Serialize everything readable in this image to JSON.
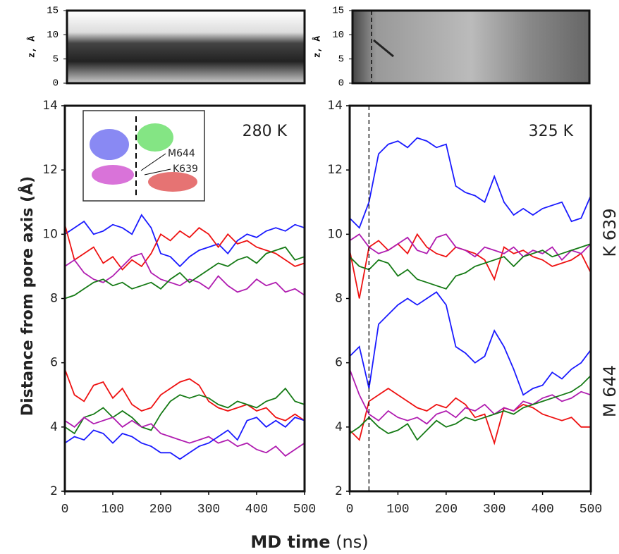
{
  "figure": {
    "ylabel": "Distance from pore axis (Å)",
    "xlabel": "MD time",
    "xlabel_unit": "(ns)",
    "side_labels": [
      "K 639",
      "M 644"
    ],
    "inset_labels": [
      "M644",
      "K639"
    ]
  },
  "chart_data": [
    {
      "type": "heatmap",
      "ylabel": "z, Å",
      "xlim": [
        0,
        500
      ],
      "ylim": [
        0,
        15
      ],
      "yticks": [
        0,
        5,
        10,
        15
      ]
    },
    {
      "type": "heatmap",
      "ylabel": "z, Å",
      "xlim": [
        0,
        500
      ],
      "ylim": [
        0,
        15
      ],
      "yticks": [
        0,
        5,
        10,
        15
      ],
      "vline": 40
    },
    {
      "type": "line",
      "annotation": "280 K",
      "x": [
        0,
        20,
        40,
        60,
        80,
        100,
        120,
        140,
        160,
        180,
        200,
        220,
        240,
        260,
        280,
        300,
        320,
        340,
        360,
        380,
        400,
        420,
        440,
        460,
        480,
        500
      ],
      "xlim": [
        0,
        500
      ],
      "xticks": [
        0,
        100,
        200,
        300,
        400,
        500
      ],
      "ylim": [
        2,
        14
      ],
      "yticks": [
        2,
        4,
        6,
        8,
        10,
        12,
        14
      ],
      "series": [
        {
          "color": "#1a1aff",
          "values": [
            10.0,
            10.2,
            10.4,
            10.0,
            10.1,
            10.3,
            10.2,
            10.0,
            10.6,
            10.2,
            9.4,
            9.3,
            9.0,
            9.3,
            9.5,
            9.6,
            9.7,
            9.4,
            9.8,
            10.0,
            9.9,
            10.1,
            10.2,
            10.1,
            10.3,
            10.2
          ]
        },
        {
          "color": "#ee1111",
          "values": [
            10.3,
            9.2,
            9.4,
            9.6,
            9.1,
            9.3,
            8.9,
            9.2,
            9.0,
            9.4,
            10.0,
            9.8,
            10.1,
            9.9,
            10.2,
            10.0,
            9.6,
            10.0,
            9.7,
            9.8,
            9.6,
            9.5,
            9.4,
            9.2,
            9.0,
            9.1
          ]
        },
        {
          "color": "#b01cb0",
          "values": [
            9.0,
            9.2,
            8.8,
            8.6,
            8.5,
            8.7,
            9.0,
            9.3,
            9.4,
            8.8,
            8.6,
            8.5,
            8.4,
            8.6,
            8.5,
            8.3,
            8.7,
            8.4,
            8.2,
            8.3,
            8.6,
            8.4,
            8.5,
            8.2,
            8.3,
            8.1
          ]
        },
        {
          "color": "#157a15",
          "values": [
            8.0,
            8.1,
            8.3,
            8.5,
            8.6,
            8.4,
            8.5,
            8.3,
            8.4,
            8.5,
            8.3,
            8.6,
            8.8,
            8.5,
            8.7,
            8.9,
            9.1,
            9.0,
            9.2,
            9.3,
            9.1,
            9.4,
            9.5,
            9.6,
            9.2,
            9.3
          ]
        },
        {
          "color": "#ee1111",
          "values": [
            5.8,
            5.0,
            4.8,
            5.3,
            5.4,
            4.9,
            5.2,
            4.7,
            4.5,
            4.6,
            5.0,
            5.2,
            5.4,
            5.5,
            5.3,
            4.8,
            4.6,
            4.5,
            4.6,
            4.7,
            4.5,
            4.6,
            4.3,
            4.2,
            4.4,
            4.2
          ]
        },
        {
          "color": "#157a15",
          "values": [
            4.0,
            3.8,
            4.3,
            4.4,
            4.6,
            4.3,
            4.5,
            4.3,
            4.0,
            3.9,
            4.4,
            4.8,
            5.0,
            4.9,
            5.0,
            4.9,
            4.7,
            4.6,
            4.8,
            4.7,
            4.6,
            4.8,
            4.9,
            5.2,
            4.8,
            4.7
          ]
        },
        {
          "color": "#b01cb0",
          "values": [
            4.2,
            4.0,
            4.3,
            4.1,
            4.2,
            4.3,
            4.0,
            4.2,
            4.0,
            4.1,
            3.8,
            3.7,
            3.6,
            3.5,
            3.6,
            3.7,
            3.5,
            3.6,
            3.4,
            3.5,
            3.3,
            3.2,
            3.4,
            3.1,
            3.3,
            3.5
          ]
        },
        {
          "color": "#1a1aff",
          "values": [
            3.5,
            3.7,
            3.6,
            3.9,
            3.8,
            3.5,
            3.8,
            3.7,
            3.5,
            3.4,
            3.2,
            3.2,
            3.0,
            3.2,
            3.4,
            3.5,
            3.7,
            3.9,
            3.6,
            4.2,
            4.3,
            4.0,
            4.2,
            4.0,
            4.3,
            4.2
          ]
        }
      ]
    },
    {
      "type": "line",
      "annotation": "325 K",
      "x": [
        0,
        20,
        40,
        60,
        80,
        100,
        120,
        140,
        160,
        180,
        200,
        220,
        240,
        260,
        280,
        300,
        320,
        340,
        360,
        380,
        400,
        420,
        440,
        460,
        480,
        500
      ],
      "xlim": [
        0,
        500
      ],
      "xticks": [
        0,
        100,
        200,
        300,
        400,
        500
      ],
      "ylim": [
        2,
        14
      ],
      "yticks": [
        2,
        4,
        6,
        8,
        10,
        12,
        14
      ],
      "vline": 40,
      "series": [
        {
          "color": "#1a1aff",
          "values": [
            10.5,
            10.2,
            11.0,
            12.5,
            12.8,
            12.9,
            12.7,
            13.0,
            12.9,
            12.7,
            12.8,
            11.5,
            11.3,
            11.2,
            11.0,
            11.8,
            11.0,
            10.6,
            10.8,
            10.6,
            10.8,
            10.9,
            11.0,
            10.4,
            10.5,
            11.2
          ]
        },
        {
          "color": "#ee1111",
          "values": [
            9.5,
            8.0,
            9.6,
            9.8,
            9.5,
            9.7,
            9.4,
            10.0,
            9.6,
            9.4,
            9.3,
            9.6,
            9.5,
            9.4,
            9.2,
            8.6,
            9.6,
            9.4,
            9.5,
            9.3,
            9.2,
            9.0,
            9.1,
            9.2,
            9.4,
            8.8
          ]
        },
        {
          "color": "#b01cb0",
          "values": [
            9.8,
            10.0,
            9.6,
            9.4,
            9.5,
            9.7,
            9.9,
            9.5,
            9.4,
            9.9,
            10.0,
            9.6,
            9.5,
            9.3,
            9.6,
            9.5,
            9.4,
            9.6,
            9.3,
            9.5,
            9.4,
            9.6,
            9.2,
            9.5,
            9.4,
            9.7
          ]
        },
        {
          "color": "#157a15",
          "values": [
            9.3,
            9.0,
            8.9,
            9.2,
            9.1,
            8.7,
            8.9,
            8.6,
            8.5,
            8.4,
            8.3,
            8.7,
            8.8,
            9.0,
            9.1,
            9.2,
            9.3,
            9.0,
            9.3,
            9.4,
            9.5,
            9.3,
            9.4,
            9.5,
            9.6,
            9.7
          ]
        },
        {
          "color": "#1a1aff",
          "values": [
            6.2,
            6.5,
            5.2,
            7.2,
            7.5,
            7.8,
            8.0,
            7.8,
            8.0,
            8.2,
            7.8,
            6.5,
            6.3,
            6.0,
            6.2,
            7.0,
            6.5,
            5.8,
            5.0,
            5.2,
            5.3,
            5.7,
            5.5,
            5.8,
            6.0,
            6.4
          ]
        },
        {
          "color": "#ee1111",
          "values": [
            3.9,
            3.6,
            4.8,
            5.0,
            5.2,
            5.0,
            4.8,
            4.6,
            4.5,
            4.7,
            4.6,
            4.9,
            4.7,
            4.3,
            4.4,
            3.5,
            4.6,
            4.5,
            4.7,
            4.6,
            4.4,
            4.3,
            4.2,
            4.3,
            4.0,
            4.0
          ]
        },
        {
          "color": "#b01cb0",
          "values": [
            5.8,
            5.0,
            4.4,
            4.2,
            4.5,
            4.3,
            4.2,
            4.3,
            4.1,
            4.4,
            4.5,
            4.3,
            4.6,
            4.5,
            4.7,
            4.4,
            4.6,
            4.5,
            4.8,
            4.7,
            4.9,
            5.0,
            4.8,
            4.9,
            5.1,
            5.0
          ]
        },
        {
          "color": "#157a15",
          "values": [
            3.8,
            4.0,
            4.3,
            4.0,
            3.8,
            3.9,
            4.1,
            3.6,
            3.9,
            4.2,
            4.0,
            4.1,
            4.3,
            4.2,
            4.3,
            4.4,
            4.5,
            4.4,
            4.6,
            4.7,
            4.8,
            4.9,
            5.0,
            5.1,
            5.3,
            5.6
          ]
        }
      ]
    }
  ]
}
